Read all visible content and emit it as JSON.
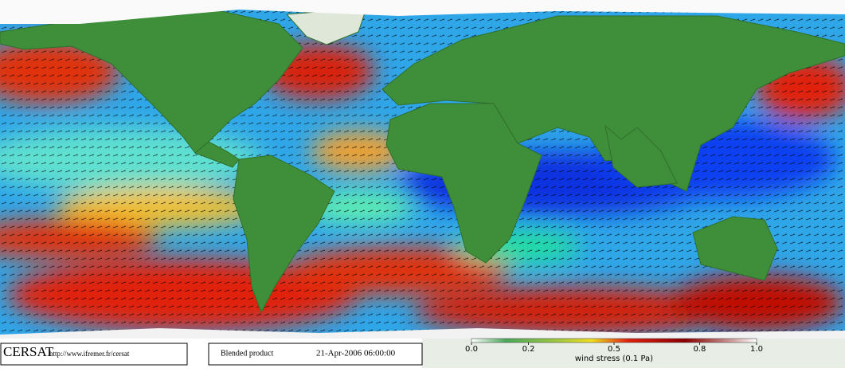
{
  "footer": {
    "logo": "CERSAT",
    "url": "http://www.ifremer.fr/cersat",
    "product": "Blended product",
    "timestamp": "21-Apr-2006 06:00:00"
  },
  "colorbar": {
    "label": "wind stress (0.1 Pa)",
    "lim": [
      0,
      1
    ],
    "ticks": [
      {
        "value": 0,
        "label": "0.0"
      },
      {
        "value": 0.2,
        "label": "0.2"
      },
      {
        "value": 0.5,
        "label": "0.5"
      },
      {
        "value": 0.8,
        "label": "0.8"
      },
      {
        "value": 1,
        "label": "1.0"
      }
    ]
  }
}
